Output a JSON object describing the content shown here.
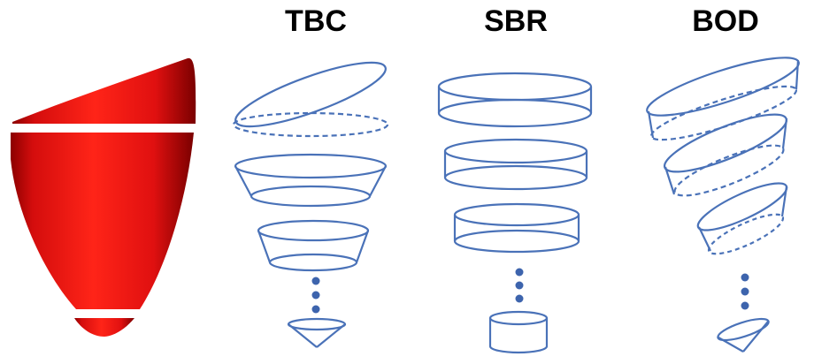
{
  "columns": {
    "tbc": {
      "title": "TBC"
    },
    "sbr": {
      "title": "SBR"
    },
    "bod": {
      "title": "BOD"
    }
  },
  "colors": {
    "heart_red": "#e01010",
    "heart_dark": "#8c0000",
    "outline_blue": "#4a72b8",
    "dot_blue": "#3d64ad",
    "cut_line": "#ffffff"
  }
}
